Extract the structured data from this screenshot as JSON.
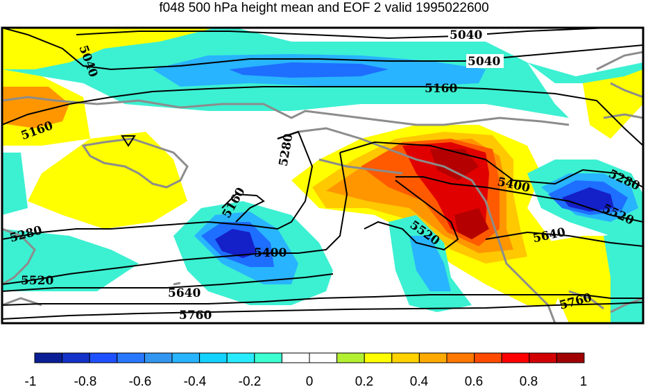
{
  "title": "f048 500 hPa height mean and EOF 2 valid 1995022600",
  "contour_labels": [
    "5040",
    "5040",
    "5040",
    "5160",
    "5160",
    "5160",
    "5280",
    "5280",
    "5280",
    "5400",
    "5400",
    "5520",
    "5520",
    "5520",
    "5640",
    "5640",
    "5760",
    "5760"
  ],
  "colorbar": {
    "tick_labels": [
      "-1",
      "-0.8",
      "-0.6",
      "-0.4",
      "-0.2",
      "0",
      "0.2",
      "0.4",
      "0.6",
      "0.8",
      "1"
    ],
    "colors": [
      "#0a1e96",
      "#1432c8",
      "#1e50ff",
      "#2878ff",
      "#3296f0",
      "#28b4ff",
      "#14d2ff",
      "#28ebff",
      "#3cffd2",
      "#ffffff",
      "#ffffff",
      "#b4f032",
      "#ffff00",
      "#ffd200",
      "#ffaa00",
      "#ff7800",
      "#ff4b00",
      "#ff0000",
      "#d20000",
      "#a00000"
    ]
  },
  "palette": {
    "blue_dark": "#1420c8",
    "blue": "#1e6eff",
    "blue_light": "#28b4ff",
    "cyan": "#3cf0d2",
    "yellow": "#ffff00",
    "orange_light": "#ffc800",
    "orange": "#ff9600",
    "red_orange": "#ff5a00",
    "red": "#e10000",
    "dark_red": "#b40000",
    "coast": "#8c8c8c"
  }
}
